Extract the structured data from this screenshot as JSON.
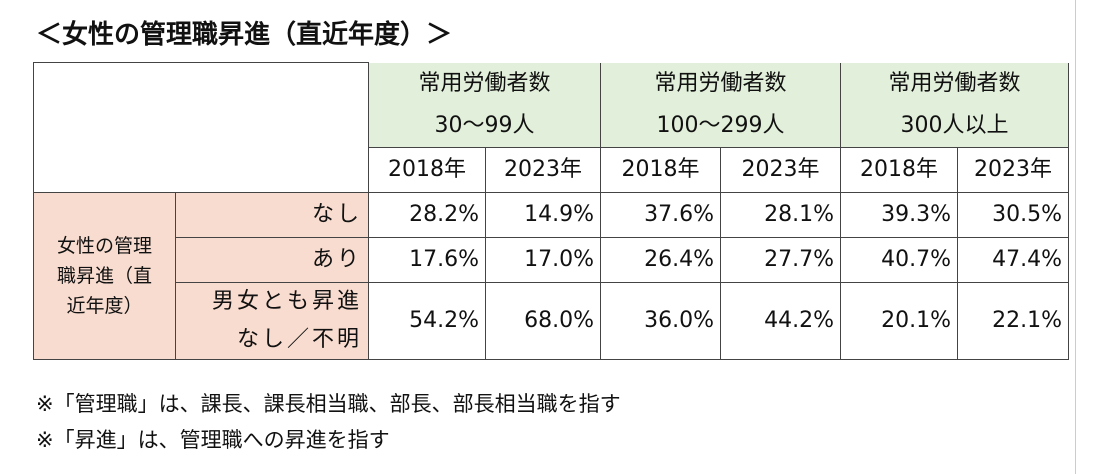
{
  "title": "＜女性の管理職昇進（直近年度）＞",
  "table": {
    "column_groups": [
      {
        "line1": "常用労働者数",
        "line2": "30〜99人"
      },
      {
        "line1": "常用労働者数",
        "line2": "100〜299人"
      },
      {
        "line1": "常用労働者数",
        "line2": "300人以上"
      }
    ],
    "years": [
      "2018年",
      "2023年",
      "2018年",
      "2023年",
      "2018年",
      "2023年"
    ],
    "row_group": "女性の管理職昇進（直近年度）",
    "rows": [
      {
        "label": [
          "なし"
        ],
        "cells": [
          "28.2%",
          "14.9%",
          "37.6%",
          "28.1%",
          "39.3%",
          "30.5%"
        ]
      },
      {
        "label": [
          "あり"
        ],
        "cells": [
          "17.6%",
          "17.0%",
          "26.4%",
          "27.7%",
          "40.7%",
          "47.4%"
        ]
      },
      {
        "label": [
          "男女とも昇進",
          "なし／不明"
        ],
        "cells": [
          "54.2%",
          "68.0%",
          "36.0%",
          "44.2%",
          "20.1%",
          "22.1%"
        ]
      }
    ]
  },
  "notes": [
    "※「管理職」は、課長、課長相当職、部長、部長相当職を指す",
    "※「昇進」は、管理職への昇進を指す"
  ]
}
